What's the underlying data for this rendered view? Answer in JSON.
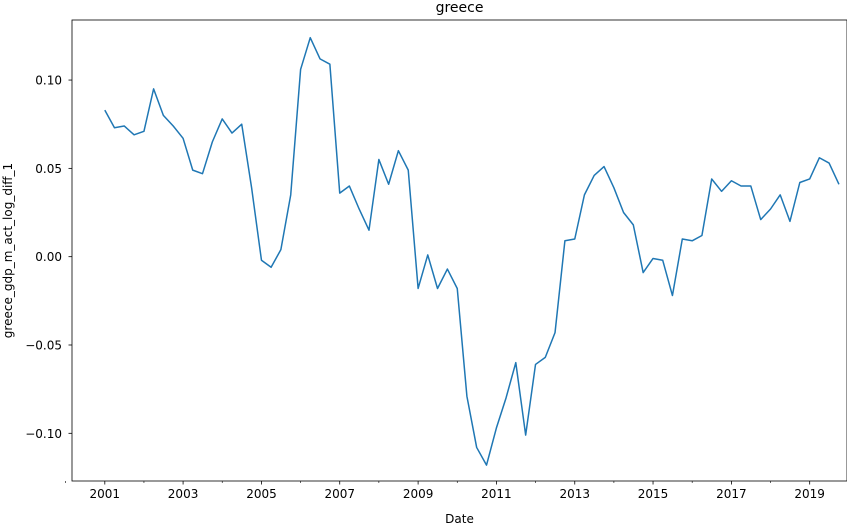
{
  "chart_data": {
    "type": "line",
    "title": "greece",
    "xlabel": "Date",
    "ylabel": "greece_gdp_m_act_log_diff_1",
    "xlim": [
      "2000-03-01",
      "2019-12-15"
    ],
    "ylim": [
      -0.127,
      0.134
    ],
    "x_major_ticks": [
      "2001-01-01",
      "2003-01-01",
      "2005-01-01",
      "2007-01-01",
      "2009-01-01",
      "2011-01-01",
      "2013-01-01",
      "2015-01-01",
      "2017-01-01",
      "2019-01-01"
    ],
    "x_tick_labels": [
      "2001",
      "2003",
      "2005",
      "2007",
      "2009",
      "2011",
      "2013",
      "2015",
      "2017",
      "2019"
    ],
    "x_minor_ticks": [
      "2000-01-01",
      "2002-01-01",
      "2004-01-01",
      "2006-01-01",
      "2008-01-01",
      "2010-01-01",
      "2012-01-01",
      "2014-01-01",
      "2016-01-01",
      "2018-01-01"
    ],
    "y_ticks": [
      -0.1,
      -0.05,
      0.0,
      0.05,
      0.1
    ],
    "y_tick_labels": [
      "−0.10",
      "−0.05",
      "0.00",
      "0.05",
      "0.10"
    ],
    "grid": false,
    "legend": "none",
    "series": [
      {
        "color": "#1f77b4",
        "x": [
          "2001-01-01",
          "2001-04-01",
          "2001-07-01",
          "2001-10-01",
          "2002-01-01",
          "2002-04-01",
          "2002-07-01",
          "2002-10-01",
          "2003-01-01",
          "2003-04-01",
          "2003-07-01",
          "2003-10-01",
          "2004-01-01",
          "2004-04-01",
          "2004-07-01",
          "2004-10-01",
          "2005-01-01",
          "2005-04-01",
          "2005-07-01",
          "2005-10-01",
          "2006-01-01",
          "2006-04-01",
          "2006-07-01",
          "2006-10-01",
          "2007-01-01",
          "2007-04-01",
          "2007-07-01",
          "2007-10-01",
          "2008-01-01",
          "2008-04-01",
          "2008-07-01",
          "2008-10-01",
          "2009-01-01",
          "2009-04-01",
          "2009-07-01",
          "2009-10-01",
          "2010-01-01",
          "2010-04-01",
          "2010-07-01",
          "2010-10-01",
          "2011-01-01",
          "2011-04-01",
          "2011-07-01",
          "2011-10-01",
          "2012-01-01",
          "2012-04-01",
          "2012-07-01",
          "2012-10-01",
          "2013-01-01",
          "2013-04-01",
          "2013-07-01",
          "2013-10-01",
          "2014-01-01",
          "2014-04-01",
          "2014-07-01",
          "2014-10-01",
          "2015-01-01",
          "2015-04-01",
          "2015-07-01",
          "2015-10-01",
          "2016-01-01",
          "2016-04-01",
          "2016-07-01",
          "2016-10-01",
          "2017-01-01",
          "2017-04-01",
          "2017-07-01",
          "2017-10-01",
          "2018-01-01",
          "2018-04-01",
          "2018-07-01",
          "2018-10-01",
          "2019-01-01",
          "2019-04-01",
          "2019-07-01",
          "2019-10-01"
        ],
        "y": [
          0.083,
          0.073,
          0.074,
          0.069,
          0.071,
          0.095,
          0.08,
          0.074,
          0.067,
          0.049,
          0.047,
          0.065,
          0.078,
          0.07,
          0.075,
          0.039,
          -0.002,
          -0.006,
          0.004,
          0.035,
          0.106,
          0.124,
          0.112,
          0.109,
          0.036,
          0.04,
          0.027,
          0.015,
          0.055,
          0.041,
          0.06,
          0.049,
          -0.018,
          0.001,
          -0.018,
          -0.007,
          -0.018,
          -0.079,
          -0.108,
          -0.118,
          -0.097,
          -0.08,
          -0.06,
          -0.101,
          -0.061,
          -0.057,
          -0.043,
          0.009,
          0.01,
          0.035,
          0.046,
          0.051,
          0.039,
          0.025,
          0.018,
          -0.009,
          -0.001,
          -0.002,
          -0.022,
          0.01,
          0.009,
          0.012,
          0.044,
          0.037,
          0.043,
          0.04,
          0.04,
          0.021,
          0.027,
          0.035,
          0.02,
          0.042,
          0.044,
          0.056,
          0.053,
          0.041
        ]
      }
    ]
  }
}
